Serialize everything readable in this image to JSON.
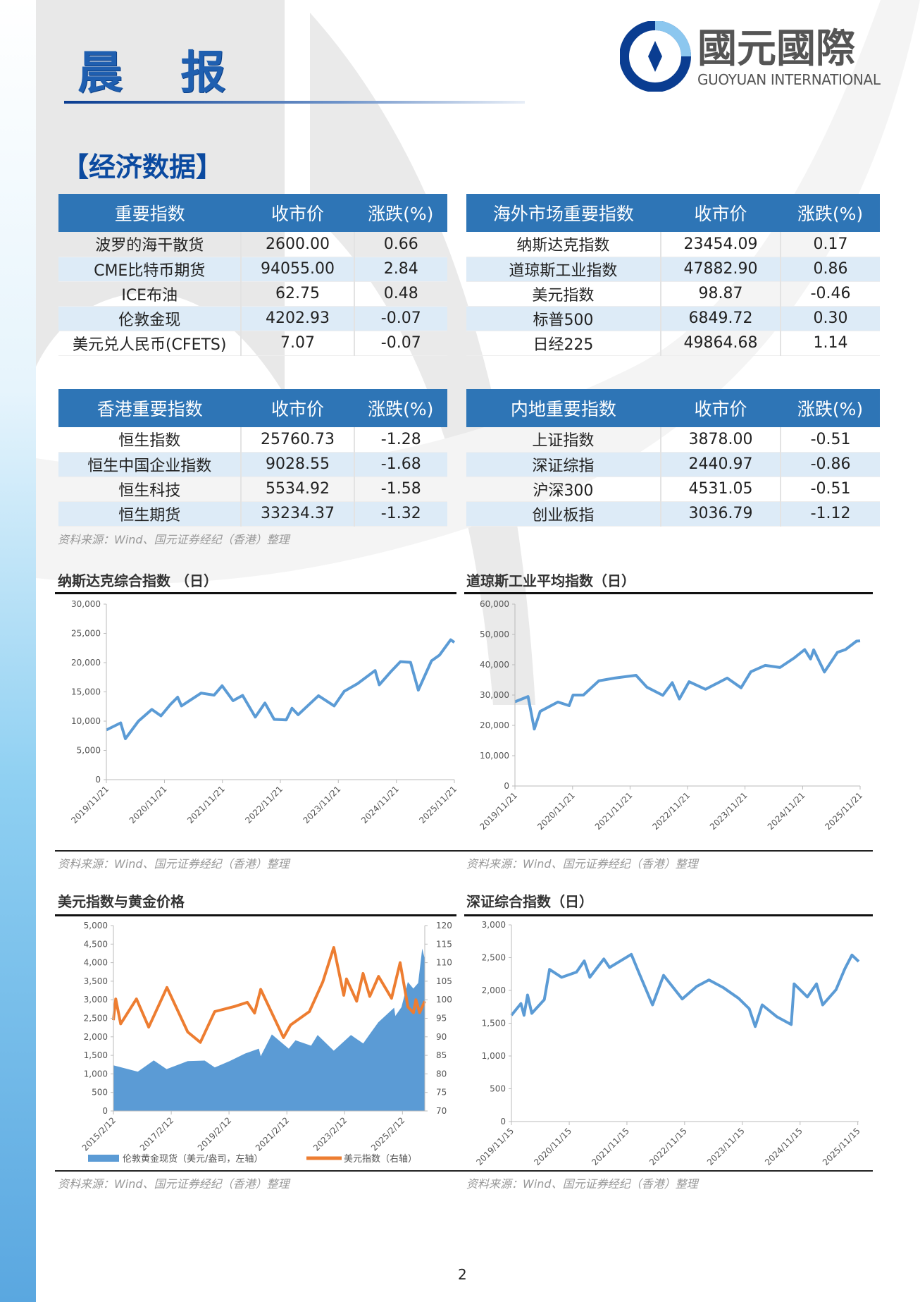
{
  "header": {
    "title": "晨 报",
    "logo_cn": "國元國際",
    "logo_en": "GUOYUAN INTERNATIONAL",
    "section": "【经济数据】"
  },
  "colors": {
    "header_blue": "#2e75b6",
    "alt_row": "#ddebf7",
    "line_blue": "#5b9bd5",
    "orange": "#ed7d31"
  },
  "tables": [
    {
      "headers": [
        "重要指数",
        "收市价",
        "涨跌(%)"
      ],
      "rows": [
        [
          "波罗的海干散货",
          "2600.00",
          "0.66"
        ],
        [
          "CME比特币期货",
          "94055.00",
          "2.84"
        ],
        [
          "ICE布油",
          "62.75",
          "0.48"
        ],
        [
          "伦敦金现",
          "4202.93",
          "-0.07"
        ],
        [
          "美元兑人民币(CFETS)",
          "7.07",
          "-0.07"
        ]
      ]
    },
    {
      "headers": [
        "海外市场重要指数",
        "收市价",
        "涨跌(%)"
      ],
      "rows": [
        [
          "纳斯达克指数",
          "23454.09",
          "0.17"
        ],
        [
          "道琼斯工业指数",
          "47882.90",
          "0.86"
        ],
        [
          "美元指数",
          "98.87",
          "-0.46"
        ],
        [
          "标普500",
          "6849.72",
          "0.30"
        ],
        [
          "日经225",
          "49864.68",
          "1.14"
        ]
      ]
    },
    {
      "headers": [
        "香港重要指数",
        "收市价",
        "涨跌(%)"
      ],
      "rows": [
        [
          "恒生指数",
          "25760.73",
          "-1.28"
        ],
        [
          "恒生中国企业指数",
          "9028.55",
          "-1.68"
        ],
        [
          "恒生科技",
          "5534.92",
          "-1.58"
        ],
        [
          "恒生期货",
          "33234.37",
          "-1.32"
        ]
      ]
    },
    {
      "headers": [
        "内地重要指数",
        "收市价",
        "涨跌(%)"
      ],
      "rows": [
        [
          "上证指数",
          "3878.00",
          "-0.51"
        ],
        [
          "深证综指",
          "2440.97",
          "-0.86"
        ],
        [
          "沪深300",
          "4531.05",
          "-0.51"
        ],
        [
          "创业板指",
          "3036.79",
          "-1.12"
        ]
      ]
    }
  ],
  "source_note": "资料来源：Wind、国元证券经纪（香港）整理",
  "page_number": "2",
  "chart_data": [
    {
      "type": "line",
      "title": "纳斯达克综合指数 （日）",
      "ylim": [
        0,
        30000
      ],
      "yticks": [
        0,
        5000,
        10000,
        15000,
        20000,
        25000,
        30000
      ],
      "ytick_labels": [
        "0",
        "5,000",
        "10,000",
        "15,000",
        "20,000",
        "25,000",
        "30,000"
      ],
      "xticks": [
        "2019/11/21",
        "2020/11/21",
        "2021/11/21",
        "2022/11/21",
        "2023/11/21",
        "2024/11/21",
        "2025/11/21"
      ],
      "xlim": [
        "2019/11/21",
        "2025/11/21"
      ],
      "grid": false,
      "series": [
        {
          "color": "#5b9bd5",
          "points": [
            [
              "2019/11/21",
              8500
            ],
            [
              "2020/02/19",
              9700
            ],
            [
              "2020/03/20",
              7000
            ],
            [
              "2020/06/10",
              10000
            ],
            [
              "2020/09/02",
              12000
            ],
            [
              "2020/10/30",
              10900
            ],
            [
              "2020/12/30",
              12900
            ],
            [
              "2021/02/12",
              14100
            ],
            [
              "2021/03/08",
              12600
            ],
            [
              "2021/07/10",
              14800
            ],
            [
              "2021/09/30",
              14450
            ],
            [
              "2021/11/19",
              16050
            ],
            [
              "2022/01/27",
              13500
            ],
            [
              "2022/03/28",
              14400
            ],
            [
              "2022/06/16",
              10700
            ],
            [
              "2022/08/16",
              13100
            ],
            [
              "2022/10/13",
              10300
            ],
            [
              "2022/12/28",
              10200
            ],
            [
              "2023/02/02",
              12200
            ],
            [
              "2023/03/13",
              11100
            ],
            [
              "2023/07/19",
              14350
            ],
            [
              "2023/10/26",
              12600
            ],
            [
              "2023/12/28",
              15100
            ],
            [
              "2024/03/21",
              16400
            ],
            [
              "2024/07/10",
              18650
            ],
            [
              "2024/08/05",
              16200
            ],
            [
              "2024/10/15",
              18400
            ],
            [
              "2024/12/16",
              20170
            ],
            [
              "2025/02/18",
              20050
            ],
            [
              "2025/04/08",
              15300
            ],
            [
              "2025/06/30",
              20300
            ],
            [
              "2025/08/20",
              21300
            ],
            [
              "2025/10/29",
              23900
            ],
            [
              "2025/11/21",
              23454
            ]
          ]
        }
      ]
    },
    {
      "type": "line",
      "title": "道琼斯工业平均指数（日）",
      "ylim": [
        0,
        60000
      ],
      "yticks": [
        0,
        10000,
        20000,
        30000,
        40000,
        50000,
        60000
      ],
      "ytick_labels": [
        "0",
        "10,000",
        "20,000",
        "30,000",
        "40,000",
        "50,000",
        "60,000"
      ],
      "xticks": [
        "2019/11/21",
        "2020/11/21",
        "2021/11/21",
        "2022/11/21",
        "2023/11/21",
        "2024/11/21",
        "2025/11/21"
      ],
      "xlim": [
        "2019/11/21",
        "2025/11/21"
      ],
      "grid": false,
      "series": [
        {
          "color": "#5b9bd5",
          "points": [
            [
              "2019/11/21",
              27800
            ],
            [
              "2020/02/12",
              29500
            ],
            [
              "2020/03/23",
              18800
            ],
            [
              "2020/04/29",
              24600
            ],
            [
              "2020/08/20",
              27700
            ],
            [
              "2020/10/30",
              26500
            ],
            [
              "2020/11/24",
              30000
            ],
            [
              "2021/01/29",
              30000
            ],
            [
              "2021/05/07",
              34700
            ],
            [
              "2021/08/16",
              35600
            ],
            [
              "2021/12/29",
              36500
            ],
            [
              "2022/03/08",
              32600
            ],
            [
              "2022/06/17",
              29900
            ],
            [
              "2022/08/16",
              34100
            ],
            [
              "2022/09/30",
              28700
            ],
            [
              "2022/12/01",
              34400
            ],
            [
              "2023/03/15",
              31900
            ],
            [
              "2023/07/31",
              35600
            ],
            [
              "2023/10/27",
              32400
            ],
            [
              "2023/12/28",
              37700
            ],
            [
              "2024/03/28",
              39800
            ],
            [
              "2024/06/30",
              39100
            ],
            [
              "2024/09/30",
              42300
            ],
            [
              "2024/12/04",
              45000
            ],
            [
              "2025/01/10",
              41900
            ],
            [
              "2025/01/30",
              44900
            ],
            [
              "2025/04/08",
              37600
            ],
            [
              "2025/06/30",
              44100
            ],
            [
              "2025/08/20",
              45000
            ],
            [
              "2025/10/29",
              47800
            ],
            [
              "2025/11/21",
              47883
            ]
          ]
        }
      ]
    },
    {
      "type": "bar+line",
      "title": "美元指数与黄金价格",
      "ylim": [
        0,
        5000
      ],
      "y2lim": [
        70,
        120
      ],
      "yticks": [
        0,
        500,
        1000,
        1500,
        2000,
        2500,
        3000,
        3500,
        4000,
        4500,
        5000
      ],
      "ytick_labels": [
        "0",
        "500",
        "1,000",
        "1,500",
        "2,000",
        "2,500",
        "3,000",
        "3,500",
        "4,000",
        "4,500",
        "5,000"
      ],
      "y2ticks": [
        70,
        75,
        80,
        85,
        90,
        95,
        100,
        105,
        110,
        115,
        120
      ],
      "xticks": [
        "2015/2/12",
        "2017/2/12",
        "2019/2/12",
        "2021/2/12",
        "2023/2/12",
        "2025/2/12"
      ],
      "xlim": [
        "2015/2/12",
        "2025/11/21"
      ],
      "grid": false,
      "legend_position": "bottom",
      "series": [
        {
          "name": "伦敦黄金现货（美元/盎司，左轴）",
          "kind": "area",
          "axis": "left",
          "color": "#5b9bd5",
          "points": [
            [
              "2015/02/12",
              1230
            ],
            [
              "2015/12/17",
              1060
            ],
            [
              "2016/07/06",
              1365
            ],
            [
              "2016/12/15",
              1130
            ],
            [
              "2017/09/08",
              1345
            ],
            [
              "2018/04/11",
              1360
            ],
            [
              "2018/08/16",
              1175
            ],
            [
              "2019/02/20",
              1345
            ],
            [
              "2019/09/04",
              1550
            ],
            [
              "2020/02/24",
              1680
            ],
            [
              "2020/03/19",
              1475
            ],
            [
              "2020/08/06",
              2065
            ],
            [
              "2021/03/08",
              1680
            ],
            [
              "2021/06/01",
              1905
            ],
            [
              "2021/12/15",
              1760
            ],
            [
              "2022/03/08",
              2050
            ],
            [
              "2022/09/28",
              1625
            ],
            [
              "2023/05/03",
              2050
            ],
            [
              "2023/10/05",
              1820
            ],
            [
              "2023/12/28",
              2075
            ],
            [
              "2024/04/12",
              2390
            ],
            [
              "2024/10/30",
              2785
            ],
            [
              "2024/11/14",
              2560
            ],
            [
              "2025/01/30",
              2800
            ],
            [
              "2025/04/21",
              3480
            ],
            [
              "2025/06/30",
              3300
            ],
            [
              "2025/08/29",
              3450
            ],
            [
              "2025/10/20",
              4380
            ],
            [
              "2025/11/21",
              4100
            ]
          ]
        },
        {
          "name": "美元指数（右轴）",
          "kind": "line",
          "axis": "right",
          "color": "#ed7d31",
          "points": [
            [
              "2015/02/12",
              94.5
            ],
            [
              "2015/03/13",
              100.2
            ],
            [
              "2015/05/15",
              93.5
            ],
            [
              "2015/11/30",
              100.2
            ],
            [
              "2016/05/03",
              92.6
            ],
            [
              "2016/12/20",
              103.3
            ],
            [
              "2017/09/08",
              91.3
            ],
            [
              "2018/02/15",
              88.5
            ],
            [
              "2018/08/15",
              96.8
            ],
            [
              "2019/04/25",
              98.2
            ],
            [
              "2019/10/01",
              99.3
            ],
            [
              "2020/01/01",
              96.4
            ],
            [
              "2020/03/19",
              102.8
            ],
            [
              "2020/12/31",
              89.8
            ],
            [
              "2021/03/31",
              93.2
            ],
            [
              "2021/11/24",
              96.8
            ],
            [
              "2022/05/12",
              104.8
            ],
            [
              "2022/09/28",
              114.1
            ],
            [
              "2023/02/01",
              101.2
            ],
            [
              "2023/03/08",
              105.6
            ],
            [
              "2023/07/14",
              99.6
            ],
            [
              "2023/10/03",
              107.1
            ],
            [
              "2023/12/27",
              100.9
            ],
            [
              "2024/04/16",
              106.3
            ],
            [
              "2024/09/27",
              100.4
            ],
            [
              "2025/01/13",
              110.0
            ],
            [
              "2025/04/21",
              98.1
            ],
            [
              "2025/07/01",
              96.5
            ],
            [
              "2025/08/01",
              100.0
            ],
            [
              "2025/09/17",
              96.5
            ],
            [
              "2025/11/21",
              99.6
            ]
          ]
        }
      ]
    },
    {
      "type": "line",
      "title": "深证综合指数（日）",
      "ylim": [
        0,
        3000
      ],
      "yticks": [
        0,
        500,
        1000,
        1500,
        2000,
        2500,
        3000
      ],
      "ytick_labels": [
        "0",
        "500",
        "1,000",
        "1,500",
        "2,000",
        "2,500",
        "3,000"
      ],
      "xticks": [
        "2019/11/15",
        "2020/11/15",
        "2021/11/15",
        "2022/11/15",
        "2023/11/15",
        "2024/11/15",
        "2025/11/15"
      ],
      "xlim": [
        "2019/11/15",
        "2025/11/21"
      ],
      "grid": false,
      "series": [
        {
          "color": "#5b9bd5",
          "points": [
            [
              "2019/11/15",
              1620
            ],
            [
              "2020/01/14",
              1800
            ],
            [
              "2020/02/03",
              1620
            ],
            [
              "2020/02/25",
              1930
            ],
            [
              "2020/03/23",
              1650
            ],
            [
              "2020/06/10",
              1860
            ],
            [
              "2020/07/13",
              2320
            ],
            [
              "2020/09/28",
              2200
            ],
            [
              "2020/12/31",
              2280
            ],
            [
              "2021/02/18",
              2450
            ],
            [
              "2021/03/25",
              2200
            ],
            [
              "2021/06/22",
              2480
            ],
            [
              "2021/07/28",
              2350
            ],
            [
              "2021/12/13",
              2550
            ],
            [
              "2022/01/28",
              2280
            ],
            [
              "2022/04/26",
              1780
            ],
            [
              "2022/07/05",
              2230
            ],
            [
              "2022/10/31",
              1870
            ],
            [
              "2023/01/30",
              2060
            ],
            [
              "2023/04/18",
              2160
            ],
            [
              "2023/07/20",
              2040
            ],
            [
              "2023/10/23",
              1880
            ],
            [
              "2023/12/29",
              1720
            ],
            [
              "2024/02/05",
              1450
            ],
            [
              "2024/03/20",
              1780
            ],
            [
              "2024/06/20",
              1600
            ],
            [
              "2024/09/20",
              1480
            ],
            [
              "2024/10/08",
              2100
            ],
            [
              "2024/12/31",
              1900
            ],
            [
              "2025/02/27",
              2100
            ],
            [
              "2025/04/07",
              1780
            ],
            [
              "2025/06/30",
              2010
            ],
            [
              "2025/08/25",
              2330
            ],
            [
              "2025/10/09",
              2540
            ],
            [
              "2025/11/21",
              2441
            ]
          ]
        }
      ]
    }
  ]
}
